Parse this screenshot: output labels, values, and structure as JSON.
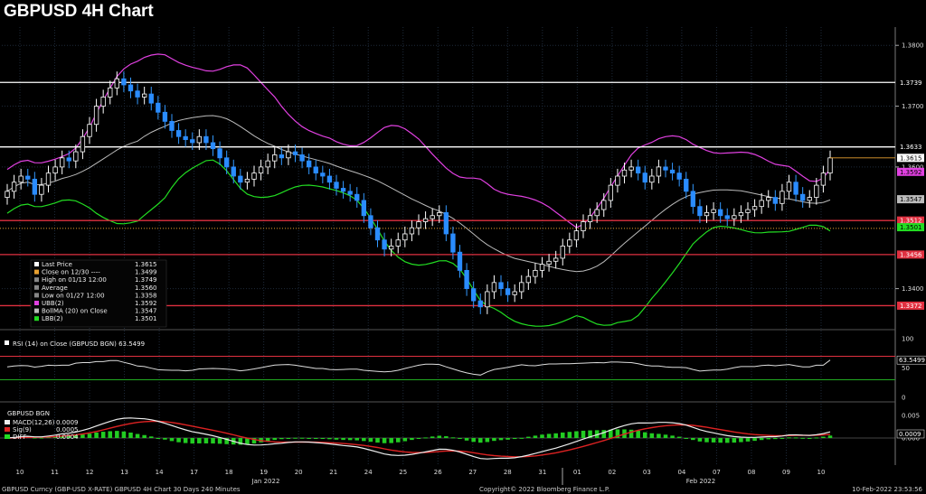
{
  "title": "GBPUSD 4H Chart",
  "footer": {
    "left": "GBPUSD Curncy (GBP-USD X-RATE) GBPUSD 4H Chart 30 Days 240 Minutes",
    "middle": "Copyright© 2022 Bloomberg Finance L.P.",
    "right": "10-Feb-2022 23:53:56"
  },
  "chart_data": [
    {
      "type": "candlestick",
      "panel": "price",
      "y_axis_ticks": [
        "1.3800",
        "1.3700",
        "1.3600",
        "1.3400"
      ],
      "ylim": [
        1.334,
        1.383
      ],
      "x_tick_labels": [
        "10",
        "11",
        "12",
        "13",
        "14",
        "17",
        "18",
        "19",
        "20",
        "21",
        "24",
        "25",
        "26",
        "27",
        "28",
        "31",
        "01",
        "02",
        "03",
        "04",
        "07",
        "08",
        "09",
        "10"
      ],
      "x_group_labels": [
        "Jan 2022",
        "Feb 2022"
      ],
      "horizontal_lines": [
        {
          "value": 1.3739,
          "label": "1.3739",
          "color": "#ffffff"
        },
        {
          "value": 1.3633,
          "label": "1.3633",
          "color": "#ffffff"
        },
        {
          "value": 1.3512,
          "label": "1.3512",
          "color": "#e03040"
        },
        {
          "value": 1.3456,
          "label": "1.3456",
          "color": "#e03040"
        },
        {
          "value": 1.3372,
          "label": "1.3372",
          "color": "#e03040"
        }
      ],
      "value_tags": [
        {
          "value": 1.3615,
          "label": "1.3615",
          "bg": "#ffffff",
          "fg": "#000000"
        },
        {
          "value": 1.3592,
          "label": "1.3592",
          "bg": "#e040e0",
          "fg": "#000000"
        },
        {
          "value": 1.3547,
          "label": "1.3547",
          "bg": "#bbbbbb",
          "fg": "#000000"
        },
        {
          "value": 1.3501,
          "label": "1.3501",
          "bg": "#22dd22",
          "fg": "#000000"
        }
      ],
      "legend": [
        {
          "label": "Last Price",
          "value": "1.3615",
          "color": "#ffffff"
        },
        {
          "label": "Close on 12/30 ----",
          "value": "1.3499",
          "color": "#e8a030"
        },
        {
          "label": "High on 01/13 12:00",
          "value": "1.3749",
          "color": "#888888"
        },
        {
          "label": "Average",
          "value": "1.3560",
          "color": "#888888"
        },
        {
          "label": "Low on 01/27 12:00",
          "value": "1.3358",
          "color": "#888888"
        },
        {
          "label": "UBB(2)",
          "value": "1.3592",
          "color": "#e040e0"
        },
        {
          "label": "BollMA (20)  on Close",
          "value": "1.3547",
          "color": "#bbbbbb"
        },
        {
          "label": "LBB(2)",
          "value": "1.3501",
          "color": "#22dd22"
        }
      ],
      "close_series": [
        1.356,
        1.3575,
        1.3585,
        1.358,
        1.3555,
        1.357,
        1.359,
        1.36,
        1.3615,
        1.361,
        1.3625,
        1.365,
        1.367,
        1.37,
        1.3715,
        1.373,
        1.3745,
        1.3735,
        1.3725,
        1.3715,
        1.372,
        1.3705,
        1.369,
        1.3675,
        1.366,
        1.365,
        1.3645,
        1.364,
        1.365,
        1.364,
        1.363,
        1.3615,
        1.36,
        1.3585,
        1.3575,
        1.358,
        1.359,
        1.36,
        1.361,
        1.362,
        1.3615,
        1.3625,
        1.362,
        1.361,
        1.36,
        1.359,
        1.3585,
        1.3575,
        1.3565,
        1.356,
        1.3555,
        1.3545,
        1.352,
        1.35,
        1.348,
        1.3465,
        1.347,
        1.348,
        1.349,
        1.35,
        1.351,
        1.3515,
        1.352,
        1.3525,
        1.349,
        1.346,
        1.343,
        1.34,
        1.338,
        1.337,
        1.3395,
        1.341,
        1.34,
        1.339,
        1.3395,
        1.341,
        1.342,
        1.343,
        1.344,
        1.3445,
        1.345,
        1.347,
        1.348,
        1.3495,
        1.351,
        1.352,
        1.353,
        1.3545,
        1.357,
        1.3585,
        1.3595,
        1.36,
        1.359,
        1.3575,
        1.3585,
        1.36,
        1.3595,
        1.359,
        1.358,
        1.356,
        1.3535,
        1.352,
        1.3525,
        1.353,
        1.352,
        1.3515,
        1.352,
        1.3525,
        1.353,
        1.3535,
        1.3545,
        1.355,
        1.354,
        1.356,
        1.3575,
        1.3555,
        1.3545,
        1.355,
        1.357,
        1.359,
        1.3615
      ]
    },
    {
      "type": "line",
      "panel": "rsi",
      "legend": "RSI (14)  on Close (GBPUSD BGN) 63.5499",
      "y_axis_ticks": [
        "100",
        "50",
        "0"
      ],
      "ylim": [
        0,
        100
      ],
      "levels": [
        70,
        30
      ],
      "last_value": "63.5499"
    },
    {
      "type": "line",
      "panel": "macd",
      "header": "GBPUSD BGN",
      "legend": [
        {
          "label": "MACD(12,26)",
          "value": "0.0009",
          "color": "#eeeeee"
        },
        {
          "label": "Sig(9)",
          "value": "0.0005",
          "color": "#dd2222"
        },
        {
          "label": "DIFF",
          "value": "0.0004",
          "color": "#22dd22"
        }
      ],
      "y_axis_ticks": [
        "0.005",
        "0.000"
      ],
      "ylim": [
        -0.006,
        0.006
      ],
      "last_value": "0.0009"
    }
  ]
}
